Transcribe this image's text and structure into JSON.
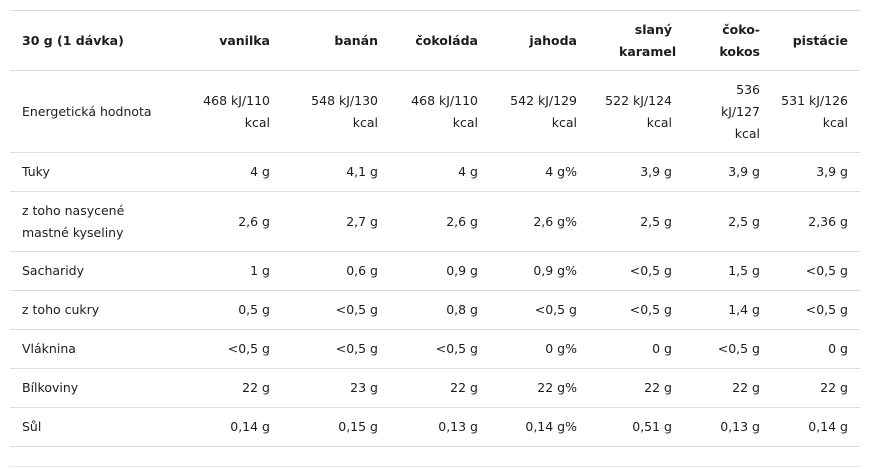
{
  "table": {
    "headers": [
      "30 g (1 dávka)",
      "vanilka",
      "banán",
      "čokoláda",
      "jahoda",
      "slaný karamel",
      "čoko-kokos",
      "pistácie"
    ],
    "rows": [
      {
        "label": "Energetická hodnota",
        "values": [
          "468 kJ/110 kcal",
          "548 kJ/130 kcal",
          "468 kJ/110 kcal",
          "542 kJ/129 kcal",
          "522 kJ/124 kcal",
          "536 kJ/127 kcal",
          "531 kJ/126 kcal"
        ]
      },
      {
        "label": "Tuky",
        "values": [
          "4 g",
          "4,1 g",
          "4 g",
          "4 g%",
          "3,9 g",
          "3,9 g",
          "3,9 g"
        ]
      },
      {
        "label": "z toho nasycené mastné kyseliny",
        "values": [
          "2,6 g",
          "2,7 g",
          "2,6 g",
          "2,6 g%",
          "2,5 g",
          "2,5 g",
          "2,36 g"
        ]
      },
      {
        "label": "Sacharidy",
        "values": [
          "1 g",
          "0,6 g",
          "0,9 g",
          "0,9 g%",
          "<0,5 g",
          "1,5 g",
          "<0,5 g"
        ]
      },
      {
        "label": "z toho cukry",
        "values": [
          "0,5 g",
          "<0,5 g",
          "0,8 g",
          "<0,5 g",
          "<0,5 g",
          "1,4 g",
          "<0,5 g"
        ]
      },
      {
        "label": "Vláknina",
        "values": [
          "<0,5 g",
          "<0,5 g",
          "<0,5 g",
          "0 g%",
          "0 g",
          "<0,5 g",
          "0 g"
        ]
      },
      {
        "label": "Bílkoviny",
        "values": [
          "22 g",
          "23 g",
          "22 g",
          "22 g%",
          "22 g",
          "22 g",
          "22 g"
        ]
      },
      {
        "label": "Sůl",
        "values": [
          "0,14 g",
          "0,15 g",
          "0,13 g",
          "0,14 g%",
          "0,51 g",
          "0,13 g",
          "0,14 g"
        ]
      }
    ]
  }
}
